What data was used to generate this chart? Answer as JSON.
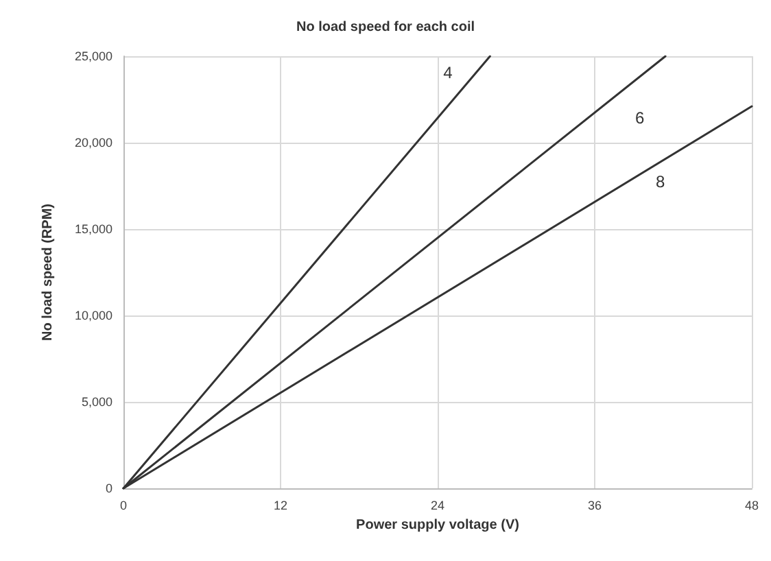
{
  "chart_data": {
    "type": "line",
    "title": "No load speed for each coil",
    "xlabel": "Power supply voltage (V)",
    "ylabel": "No load speed (RPM)",
    "xlim": [
      0,
      48
    ],
    "xticks": [
      0,
      12,
      24,
      36,
      48
    ],
    "ylim": [
      0,
      25000
    ],
    "yticks": [
      {
        "value": 0,
        "label": "0"
      },
      {
        "value": 5000,
        "label": "5,000"
      },
      {
        "value": 10000,
        "label": "10,000"
      },
      {
        "value": 15000,
        "label": "15,000"
      },
      {
        "value": 20000,
        "label": "20,000"
      },
      {
        "value": 25000,
        "label": "25,000"
      }
    ],
    "grid": true,
    "legend": false,
    "marker": "none",
    "line_style": "solid",
    "series": [
      {
        "name": "4",
        "color": "#333333",
        "x": [
          0,
          28
        ],
        "values": [
          0,
          25000
        ]
      },
      {
        "name": "6",
        "color": "#333333",
        "x": [
          0,
          41.4
        ],
        "values": [
          0,
          25000
        ]
      },
      {
        "name": "8",
        "color": "#333333",
        "x": [
          0,
          48
        ],
        "values": [
          0,
          22100
        ]
      }
    ]
  }
}
